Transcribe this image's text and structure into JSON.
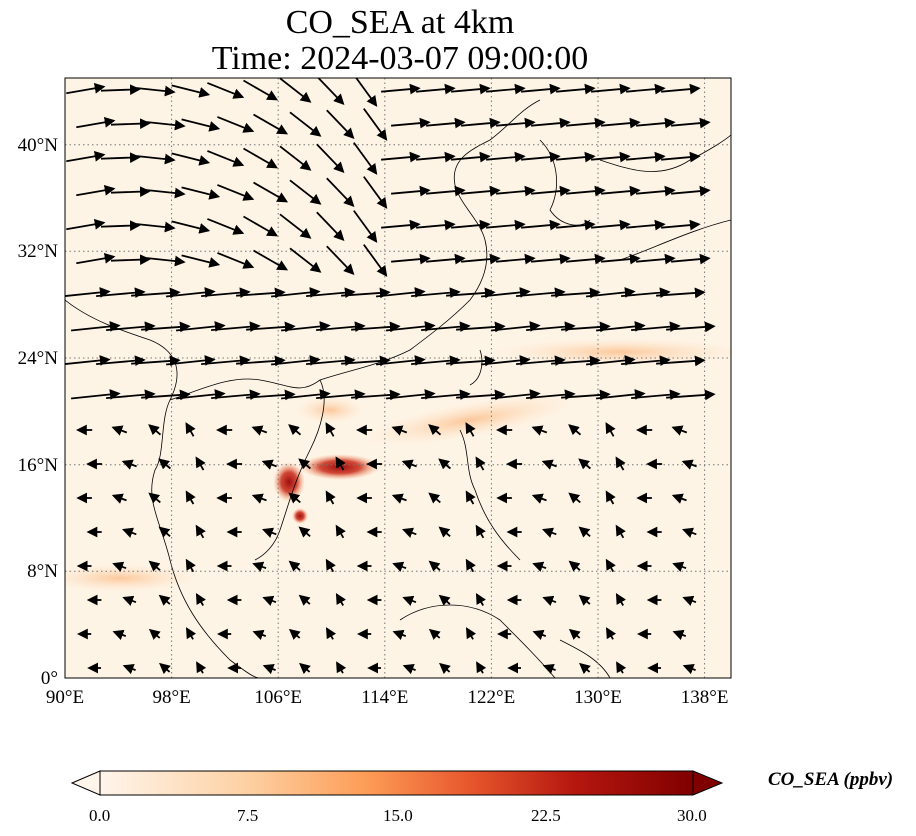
{
  "title": {
    "line1": "CO_SEA at 4km",
    "line2": "Time: 2024-03-07 09:00:00"
  },
  "map": {
    "lon_range": [
      90,
      140
    ],
    "lat_range": [
      0,
      45
    ],
    "x_ticks": [
      "90°E",
      "98°E",
      "106°E",
      "114°E",
      "122°E",
      "130°E",
      "138°E"
    ],
    "x_tick_values": [
      90,
      98,
      106,
      114,
      122,
      130,
      138
    ],
    "y_ticks": [
      "0°",
      "8°N",
      "16°N",
      "24°N",
      "32°N",
      "40°N"
    ],
    "y_tick_values": [
      0,
      8,
      16,
      24,
      32,
      40
    ],
    "gridlines": "dotted",
    "field_variable": "CO_SEA",
    "overlay": "wind vectors",
    "hotspot_lon": 109.5,
    "hotspot_lat": 15.5
  },
  "colorbar": {
    "label": "CO_SEA (ppbv)",
    "ticks": [
      "0.0",
      "7.5",
      "15.0",
      "22.5",
      "30.0"
    ],
    "min": 0,
    "max": 30,
    "colors": [
      "#fff5eb",
      "#fdd2a5",
      "#fd9243",
      "#df4f06",
      "#a63603",
      "#7f0000"
    ],
    "extend": "both"
  }
}
